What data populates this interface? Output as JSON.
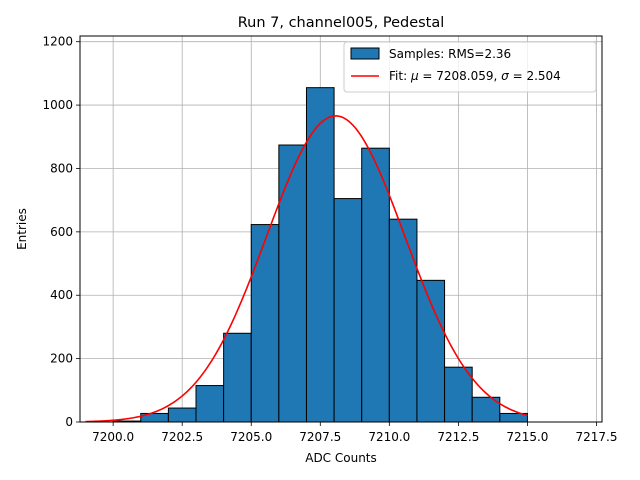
{
  "chart_data": {
    "type": "bar",
    "title": "Run 7, channel005, Pedestal",
    "xlabel": "ADC Counts",
    "ylabel": "Entries",
    "xlim": [
      7198.8,
      7217.7
    ],
    "ylim": [
      0,
      1218
    ],
    "grid": true,
    "legend_position": "top-right",
    "x_ticks": [
      7200.0,
      7202.5,
      7205.0,
      7207.5,
      7210.0,
      7212.5,
      7215.0,
      7217.5
    ],
    "x_tick_labels": [
      "7200.0",
      "7202.5",
      "7205.0",
      "7207.5",
      "7210.0",
      "7212.5",
      "7215.0",
      "7217.5"
    ],
    "y_ticks": [
      0,
      200,
      400,
      600,
      800,
      1000,
      1200
    ],
    "y_tick_labels": [
      "0",
      "200",
      "400",
      "600",
      "800",
      "1000",
      "1200"
    ],
    "bin_edges": [
      7200,
      7201,
      7202,
      7203,
      7204,
      7205,
      7206,
      7207,
      7208,
      7209,
      7210,
      7211,
      7212,
      7213,
      7214,
      7215
    ],
    "series": [
      {
        "name": "Samples: RMS=2.36",
        "kind": "histogram",
        "color": "#1f77b4",
        "edgecolor": "#000000",
        "values": [
          3,
          27,
          44,
          115,
          280,
          623,
          874,
          1055,
          705,
          864,
          640,
          447,
          173,
          78,
          27
        ]
      },
      {
        "name": "Fit: μ = 7208.059, σ = 2.504",
        "legend_parts": [
          "Fit: ",
          "μ",
          " = 7208.059, ",
          "σ",
          " = 2.504"
        ],
        "kind": "gaussian_fit",
        "color": "#ff0000",
        "mu": 7208.059,
        "sigma": 2.504,
        "amplitude": 966,
        "x_range": [
          7199,
          7215
        ]
      }
    ]
  }
}
